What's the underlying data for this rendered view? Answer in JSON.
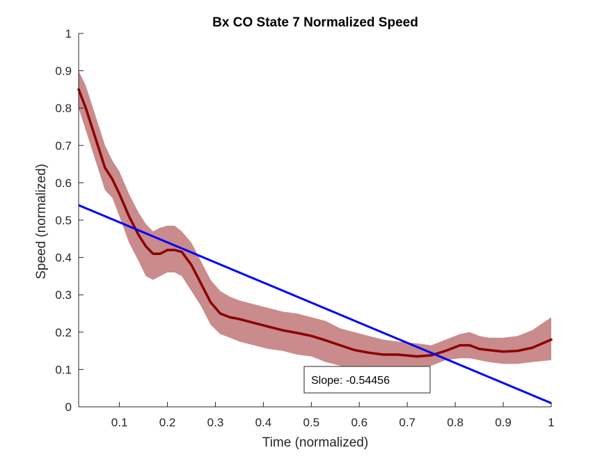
{
  "chart_data": {
    "type": "line",
    "title": "Bx  CO State 7 Normalized Speed",
    "xlabel": "Time (normalized)",
    "ylabel": "Speed (normalized)",
    "xlim": [
      0.015,
      1
    ],
    "ylim": [
      0,
      1
    ],
    "xticks": [
      0.1,
      0.2,
      0.3,
      0.4,
      0.5,
      0.6,
      0.7,
      0.8,
      0.9,
      1
    ],
    "xtick_labels": [
      "0.1",
      "0.2",
      "0.3",
      "0.4",
      "0.5",
      "0.6",
      "0.7",
      "0.8",
      "0.9",
      "1"
    ],
    "yticks": [
      0,
      0.1,
      0.2,
      0.3,
      0.4,
      0.5,
      0.6,
      0.7,
      0.8,
      0.9,
      1
    ],
    "ytick_labels": [
      "0",
      "0.1",
      "0.2",
      "0.3",
      "0.4",
      "0.5",
      "0.6",
      "0.7",
      "0.8",
      "0.9",
      "1"
    ],
    "grid": false,
    "series": [
      {
        "x": [
          0.015,
          0.03,
          0.05,
          0.07,
          0.085,
          0.1,
          0.12,
          0.14,
          0.155,
          0.17,
          0.185,
          0.2,
          0.215,
          0.23,
          0.25,
          0.27,
          0.29,
          0.31,
          0.33,
          0.35,
          0.38,
          0.41,
          0.44,
          0.47,
          0.5,
          0.53,
          0.56,
          0.59,
          0.62,
          0.65,
          0.68,
          0.72,
          0.75,
          0.78,
          0.81,
          0.83,
          0.85,
          0.87,
          0.9,
          0.93,
          0.96,
          1.0
        ],
        "mean": [
          0.85,
          0.8,
          0.72,
          0.64,
          0.61,
          0.57,
          0.51,
          0.46,
          0.43,
          0.41,
          0.41,
          0.42,
          0.42,
          0.415,
          0.38,
          0.33,
          0.28,
          0.25,
          0.24,
          0.235,
          0.225,
          0.215,
          0.205,
          0.198,
          0.19,
          0.178,
          0.165,
          0.152,
          0.145,
          0.14,
          0.14,
          0.135,
          0.138,
          0.15,
          0.165,
          0.165,
          0.155,
          0.152,
          0.148,
          0.15,
          0.158,
          0.18
        ],
        "lower": [
          0.8,
          0.74,
          0.66,
          0.58,
          0.56,
          0.51,
          0.44,
          0.39,
          0.35,
          0.34,
          0.35,
          0.36,
          0.36,
          0.35,
          0.31,
          0.27,
          0.22,
          0.195,
          0.185,
          0.175,
          0.165,
          0.155,
          0.15,
          0.14,
          0.135,
          0.12,
          0.11,
          0.1,
          0.098,
          0.095,
          0.1,
          0.1,
          0.11,
          0.125,
          0.13,
          0.13,
          0.125,
          0.12,
          0.115,
          0.115,
          0.12,
          0.125
        ],
        "upper": [
          0.9,
          0.86,
          0.78,
          0.7,
          0.66,
          0.63,
          0.57,
          0.52,
          0.49,
          0.47,
          0.48,
          0.485,
          0.485,
          0.47,
          0.44,
          0.39,
          0.34,
          0.31,
          0.295,
          0.285,
          0.275,
          0.265,
          0.255,
          0.25,
          0.24,
          0.23,
          0.21,
          0.2,
          0.19,
          0.18,
          0.175,
          0.17,
          0.165,
          0.18,
          0.195,
          0.2,
          0.19,
          0.185,
          0.185,
          0.19,
          0.205,
          0.24
        ],
        "line_color": "#8b0000",
        "band_color": "#c98b8b"
      }
    ],
    "fit_line": {
      "x": [
        0.015,
        1.0
      ],
      "y": [
        0.54,
        0.01
      ],
      "color": "#0000ff"
    },
    "annotations": [
      {
        "text": "Slope: -0.54456"
      }
    ]
  }
}
